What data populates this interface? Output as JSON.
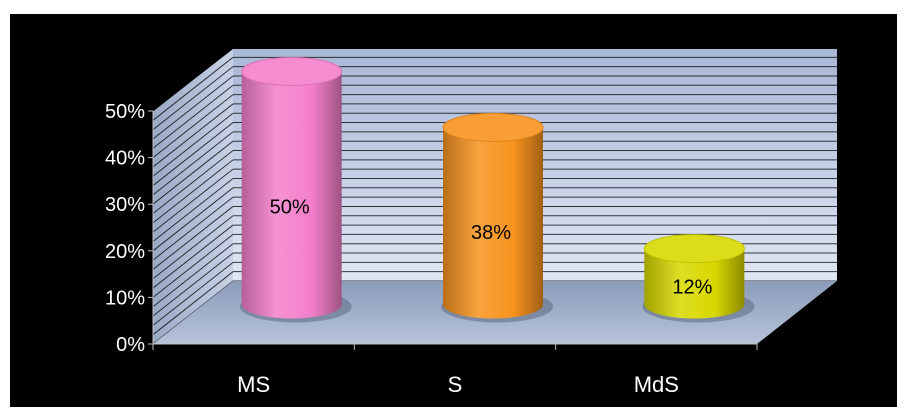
{
  "chart_data": {
    "type": "bar",
    "style": "3d-cylinder",
    "categories": [
      "MS",
      "S",
      "MdS"
    ],
    "values": [
      50,
      38,
      12
    ],
    "data_labels": [
      "50%",
      "38%",
      "12%"
    ],
    "colors": [
      "#f47fca",
      "#f7931e",
      "#d8d800"
    ],
    "ylim": [
      0,
      50
    ],
    "yticks": [
      0,
      10,
      20,
      30,
      40,
      50
    ],
    "ytick_labels": [
      "0%",
      "10%",
      "20%",
      "30%",
      "40%",
      "50%"
    ],
    "title": "",
    "xlabel": "",
    "ylabel": "",
    "grid": true,
    "legend": "none",
    "background": "#000000"
  }
}
